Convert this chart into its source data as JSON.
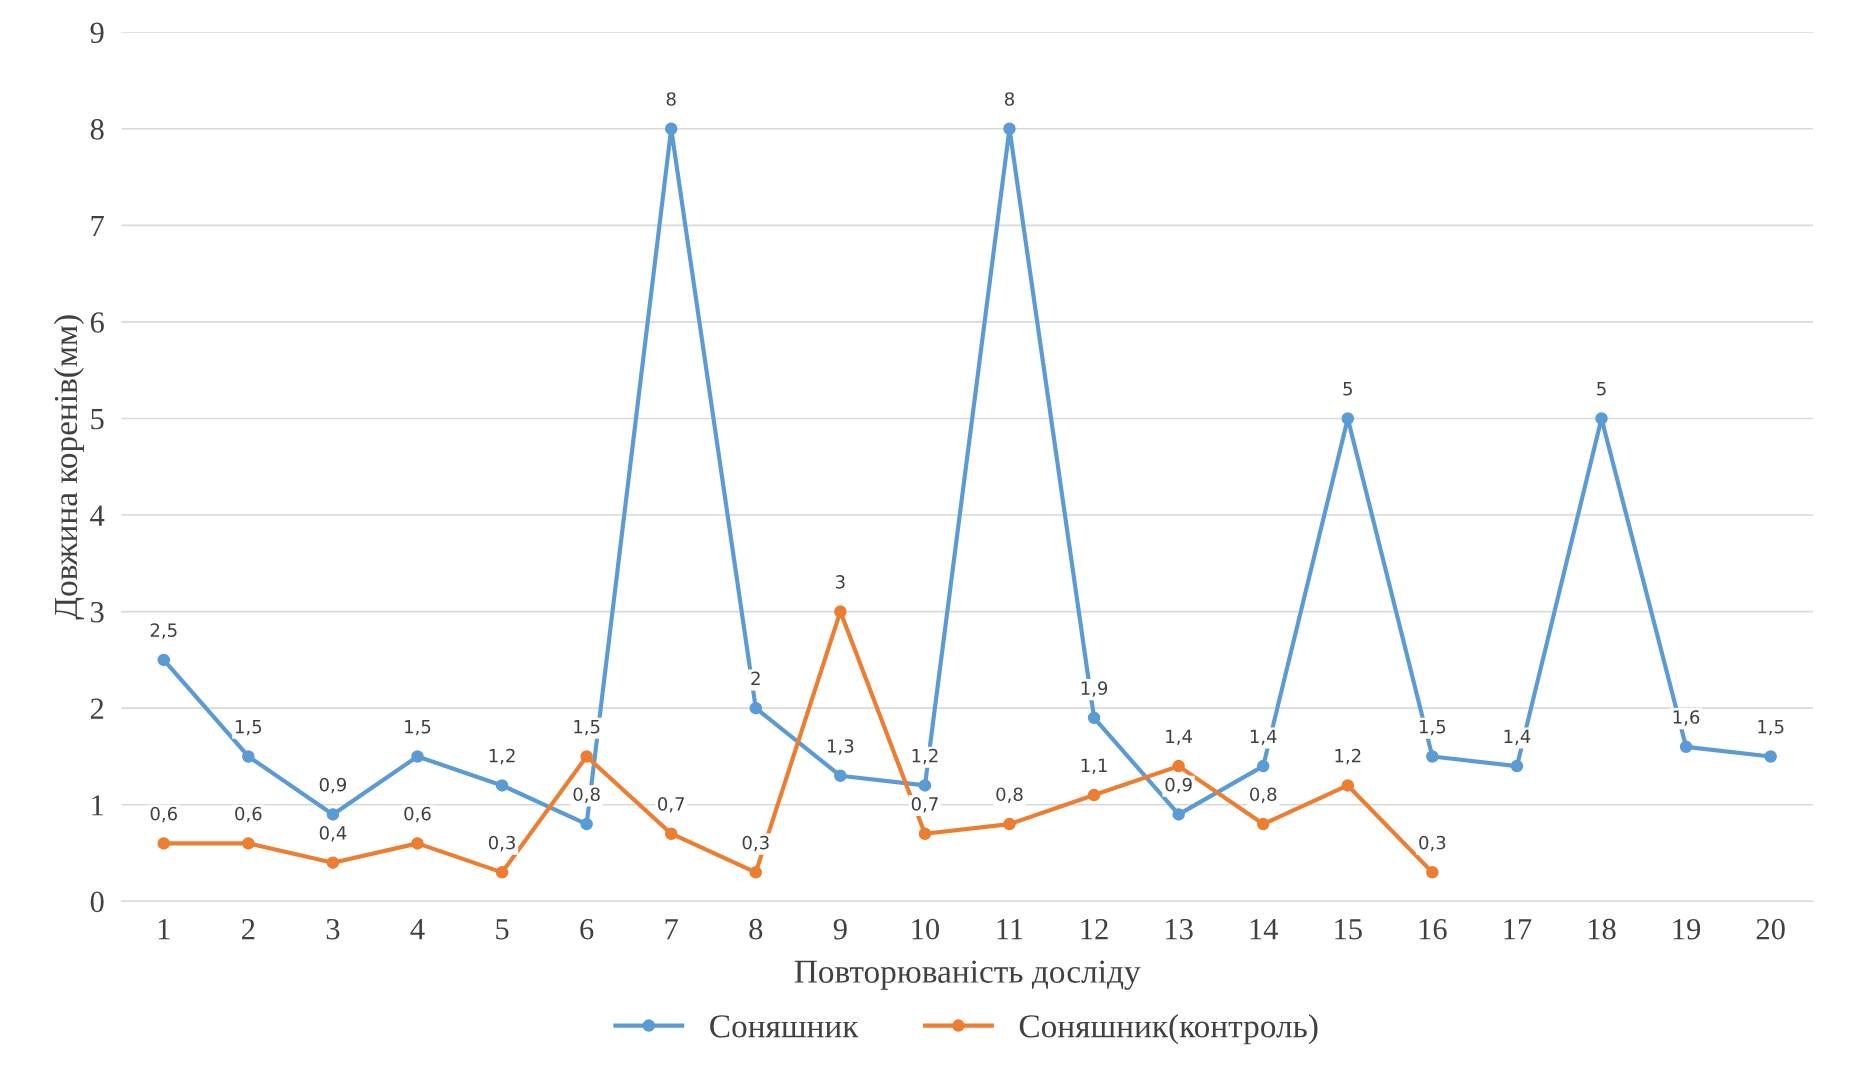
{
  "chart_data": {
    "type": "line",
    "xlabel": "Повторюваність досліду",
    "ylabel": "Довжина коренів(мм)",
    "categories": [
      "1",
      "2",
      "3",
      "4",
      "5",
      "6",
      "7",
      "8",
      "9",
      "10",
      "11",
      "12",
      "13",
      "14",
      "15",
      "16",
      "17",
      "18",
      "19",
      "20"
    ],
    "series": [
      {
        "name": "Соняшник",
        "color": "#5b9bd5",
        "values": [
          2.5,
          1.5,
          0.9,
          1.5,
          1.2,
          0.8,
          8,
          2,
          1.3,
          1.2,
          8,
          1.9,
          0.9,
          1.4,
          5,
          1.5,
          1.4,
          5,
          1.6,
          1.5
        ],
        "value_labels": [
          "2,5",
          "1,5",
          "0,9",
          "1,5",
          "1,2",
          "0,8",
          "8",
          "2",
          "1,3",
          "1,2",
          "8",
          "1,9",
          "0,9",
          "1,4",
          "5",
          "1,5",
          "1,4",
          "5",
          "1,6",
          "1,5"
        ]
      },
      {
        "name": "Соняшник(контроль)",
        "color": "#ed7d31",
        "values": [
          0.6,
          0.6,
          0.4,
          0.6,
          0.3,
          1.5,
          0.7,
          0.3,
          3,
          0.7,
          0.8,
          1.1,
          1.4,
          0.8,
          1.2,
          0.3,
          null,
          null,
          null,
          null
        ],
        "value_labels": [
          "0,6",
          "0,6",
          "0,4",
          "0,6",
          "0,3",
          "1,5",
          "0,7",
          "0,3",
          "3",
          "0,7",
          "0,8",
          "1,1",
          "1,4",
          "0,8",
          "1,2",
          "0,3",
          null,
          null,
          null,
          null
        ]
      }
    ],
    "ylim": [
      0,
      9
    ],
    "yticks": [
      0,
      1,
      2,
      3,
      4,
      5,
      6,
      7,
      8,
      9
    ],
    "grid": "y",
    "legend": "bottom",
    "marker": "circle",
    "line_style": "solid"
  }
}
